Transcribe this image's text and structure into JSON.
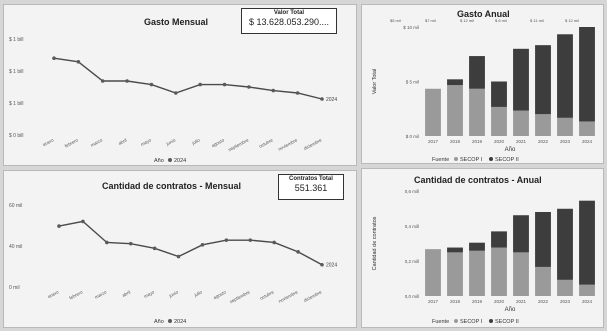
{
  "panels": {
    "gasto_mensual": {
      "title": "Gasto Mensual",
      "kpi_label": "Valor Total",
      "kpi_value": "$ 13.628.053.290...."
    },
    "gasto_anual": {
      "title": "Gasto Anual"
    },
    "contratos_mensual": {
      "title": "Cantidad de contratos - Mensual",
      "kpi_label": "Contratos Total",
      "kpi_value": "551.361"
    },
    "contratos_anual": {
      "title": "Cantidad de contratos - Anual"
    }
  },
  "chart_data": [
    {
      "id": "gasto_mensual",
      "type": "line",
      "title": "Gasto Mensual",
      "yticks": [
        "$ 1 bill",
        "$ 1 bill",
        "$ 1 bill",
        "$ 0 bill"
      ],
      "ylim": [
        0,
        4
      ],
      "categories": [
        "enero",
        "febrero",
        "marzo",
        "abril",
        "mayo",
        "junio",
        "julio",
        "agosto",
        "septiembre",
        "octubre",
        "noviembre",
        "diciembre"
      ],
      "series": [
        {
          "values": [
            3.2,
            3.05,
            2.25,
            2.25,
            2.1,
            1.75,
            2.1,
            2.1,
            2.0,
            1.85,
            1.75,
            1.5
          ]
        }
      ],
      "end_label": "2024",
      "legend_title": "Año",
      "legend_items": [
        "2024"
      ],
      "colors": {
        "line": "#4a4a4a",
        "marker": "#5a5a5a"
      }
    },
    {
      "id": "gasto_anual",
      "type": "bar",
      "stacked": true,
      "title": "Gasto Anual",
      "ylabel": "Valor Total",
      "xlabel": "Año",
      "yticks": [
        "$ 10 mil",
        "$ 5 mil",
        "$ 0 mil"
      ],
      "ylim": [
        0,
        15
      ],
      "top_labels": [
        "$5 mil",
        "$7 mil",
        "$ 12 mil",
        "$ 6 mil",
        "$ 11 mil",
        "$ 12 mil"
      ],
      "categories": [
        "2017",
        "2018",
        "2019",
        "2020",
        "2021",
        "2022",
        "2023",
        "2024"
      ],
      "series": [
        {
          "name": "SECOP I",
          "values": [
            6.5,
            7.0,
            6.5,
            4.0,
            3.5,
            3.0,
            2.5,
            2.0
          ]
        },
        {
          "name": "SECOP II",
          "values": [
            0,
            0.8,
            4.5,
            3.5,
            8.5,
            9.5,
            11.5,
            13.0
          ]
        }
      ],
      "legend_title": "Fuente",
      "colors": {
        "SECOP I": "#9a9a9a",
        "SECOP II": "#3d3d3d"
      }
    },
    {
      "id": "contratos_mensual",
      "type": "line",
      "title": "Cantidad de contratos - Mensual",
      "yticks": [
        "60 mil",
        "40 mil",
        "0 mil"
      ],
      "ylim": [
        0,
        70
      ],
      "categories": [
        "enero",
        "febrero",
        "marzo",
        "abril",
        "mayo",
        "junio",
        "julio",
        "agosto",
        "septiembre",
        "octubre",
        "noviembre",
        "diciembre"
      ],
      "series": [
        {
          "values": [
            52,
            56,
            38,
            37,
            33,
            26,
            36,
            40,
            40,
            38,
            30,
            19
          ]
        }
      ],
      "end_label": "2024",
      "legend_title": "Año",
      "legend_items": [
        "2024"
      ],
      "colors": {
        "line": "#4a4a4a",
        "marker": "#5a5a5a"
      }
    },
    {
      "id": "contratos_anual",
      "type": "bar",
      "stacked": true,
      "title": "Cantidad de contratos - Anual",
      "ylabel": "Cantidad de contratos",
      "xlabel": "Año",
      "yticks": [
        "0,6 mill",
        "0,4 mill",
        "0,2 mill",
        "0,0 mill"
      ],
      "ylim": [
        0,
        0.65
      ],
      "categories": [
        "2017",
        "2018",
        "2019",
        "2020",
        "2021",
        "2022",
        "2023",
        "2024"
      ],
      "series": [
        {
          "name": "SECOP I",
          "values": [
            0.29,
            0.27,
            0.28,
            0.3,
            0.27,
            0.18,
            0.1,
            0.07
          ]
        },
        {
          "name": "SECOP II",
          "values": [
            0,
            0.03,
            0.05,
            0.1,
            0.23,
            0.34,
            0.44,
            0.52
          ]
        }
      ],
      "legend_title": "Fuente",
      "colors": {
        "SECOP I": "#9a9a9a",
        "SECOP II": "#3d3d3d"
      }
    }
  ]
}
